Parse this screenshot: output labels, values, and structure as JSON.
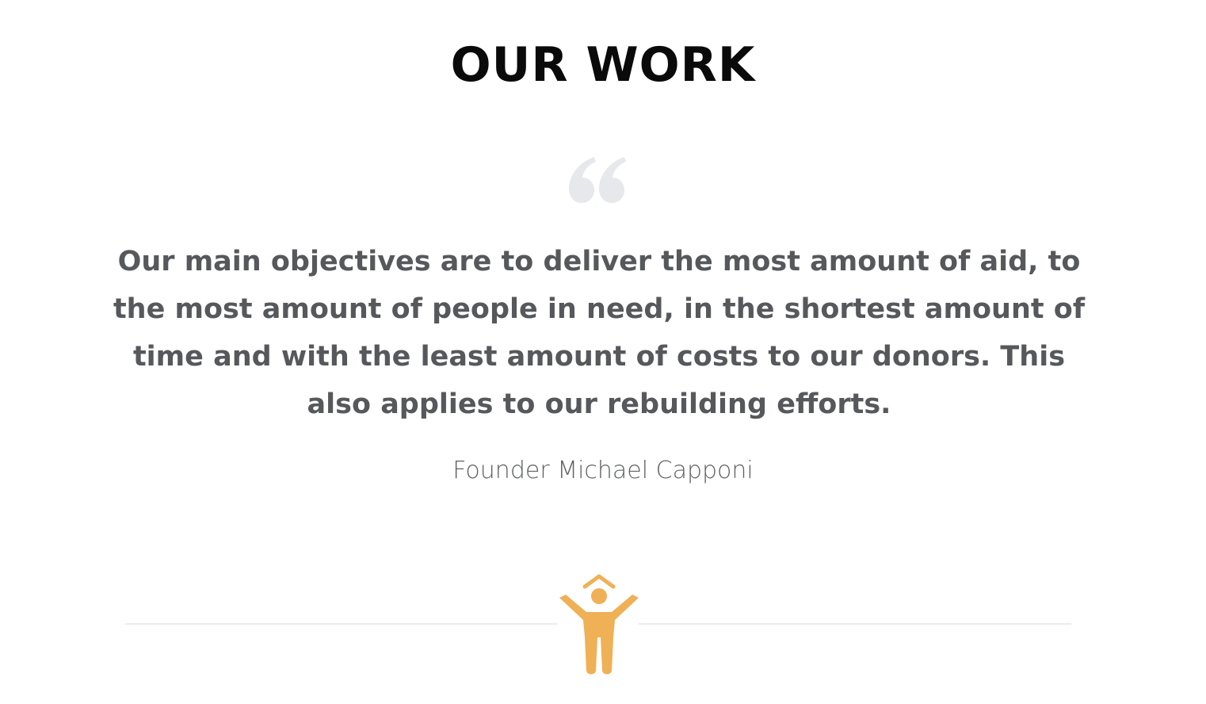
{
  "section": {
    "title": "OUR WORK",
    "quote_icon": "quote-open-icon",
    "quote": "Our main objectives are to deliver the most amount of aid, to the most amount of people in need, in the shortest amount of time and with the least amount of costs to our donors. This also applies to our rebuilding efforts.",
    "author": "Founder Michael Capponi",
    "logo_icon": "person-raising-arms-house-icon"
  },
  "colors": {
    "title": "#0a0a0a",
    "quote_text": "#56585b",
    "quote_mark": "#e6e8eb",
    "author": "#5f6163",
    "accent": "#f0b055",
    "divider": "#ececec"
  }
}
